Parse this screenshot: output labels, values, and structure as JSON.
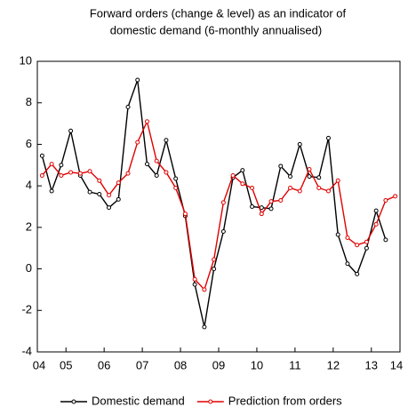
{
  "chart_data": {
    "type": "line",
    "title": [
      "Forward orders (change & level) as an indicator of",
      "domestic demand (6-monthly annualised)"
    ],
    "x": [
      2004.875,
      2005.125,
      2005.375,
      2005.625,
      2005.875,
      2006.125,
      2006.375,
      2006.625,
      2006.875,
      2007.125,
      2007.375,
      2007.625,
      2007.875,
      2008.125,
      2008.375,
      2008.625,
      2008.875,
      2009.125,
      2009.375,
      2009.625,
      2009.875,
      2010.125,
      2010.375,
      2010.625,
      2010.875,
      2011.125,
      2011.375,
      2011.625,
      2011.875,
      2012.125,
      2012.375,
      2012.625,
      2012.875,
      2013.125,
      2013.375,
      2013.625,
      2013.875,
      2014.125
    ],
    "series": [
      {
        "name": "Domestic demand",
        "color": "#000000",
        "values": [
          5.45,
          3.75,
          5.0,
          6.65,
          4.5,
          3.7,
          3.6,
          2.95,
          3.35,
          7.8,
          9.1,
          5.05,
          4.5,
          6.2,
          4.35,
          2.55,
          -0.75,
          -2.8,
          0,
          1.8,
          4.4,
          4.75,
          3.0,
          2.95,
          2.9,
          4.95,
          4.45,
          6.0,
          4.45,
          4.4,
          6.3,
          1.65,
          0.25,
          -0.25,
          1.0,
          2.8,
          1.4,
          null
        ]
      },
      {
        "name": "Prediction from orders",
        "color": "#e00000",
        "values": [
          4.5,
          5.05,
          4.5,
          4.65,
          4.6,
          4.7,
          4.25,
          3.55,
          4.15,
          4.6,
          6.1,
          7.1,
          5.2,
          4.65,
          3.9,
          2.65,
          -0.5,
          -1.0,
          0.45,
          3.2,
          4.5,
          4.1,
          3.9,
          2.65,
          3.25,
          3.3,
          3.9,
          3.75,
          4.8,
          3.9,
          3.75,
          4.25,
          1.5,
          1.15,
          1.3,
          2.15,
          3.3,
          3.5
        ]
      }
    ],
    "xlim": [
      2004.75,
      2014.25
    ],
    "xticks": [
      {
        "value": 2004.5,
        "label": "04"
      },
      {
        "value": 2005.5,
        "label": "05"
      },
      {
        "value": 2006.5,
        "label": "06"
      },
      {
        "value": 2007.5,
        "label": "07"
      },
      {
        "value": 2008.5,
        "label": "08"
      },
      {
        "value": 2009.5,
        "label": "09"
      },
      {
        "value": 2010.5,
        "label": "10"
      },
      {
        "value": 2011.5,
        "label": "11"
      },
      {
        "value": 2012.5,
        "label": "12"
      },
      {
        "value": 2013.5,
        "label": "13"
      },
      {
        "value": 2014.5,
        "label": "14"
      }
    ],
    "ylim": [
      -4,
      10
    ],
    "yticks": [
      -4,
      -2,
      0,
      2,
      4,
      6,
      8,
      10
    ],
    "grid": false,
    "legend": "bottom"
  }
}
